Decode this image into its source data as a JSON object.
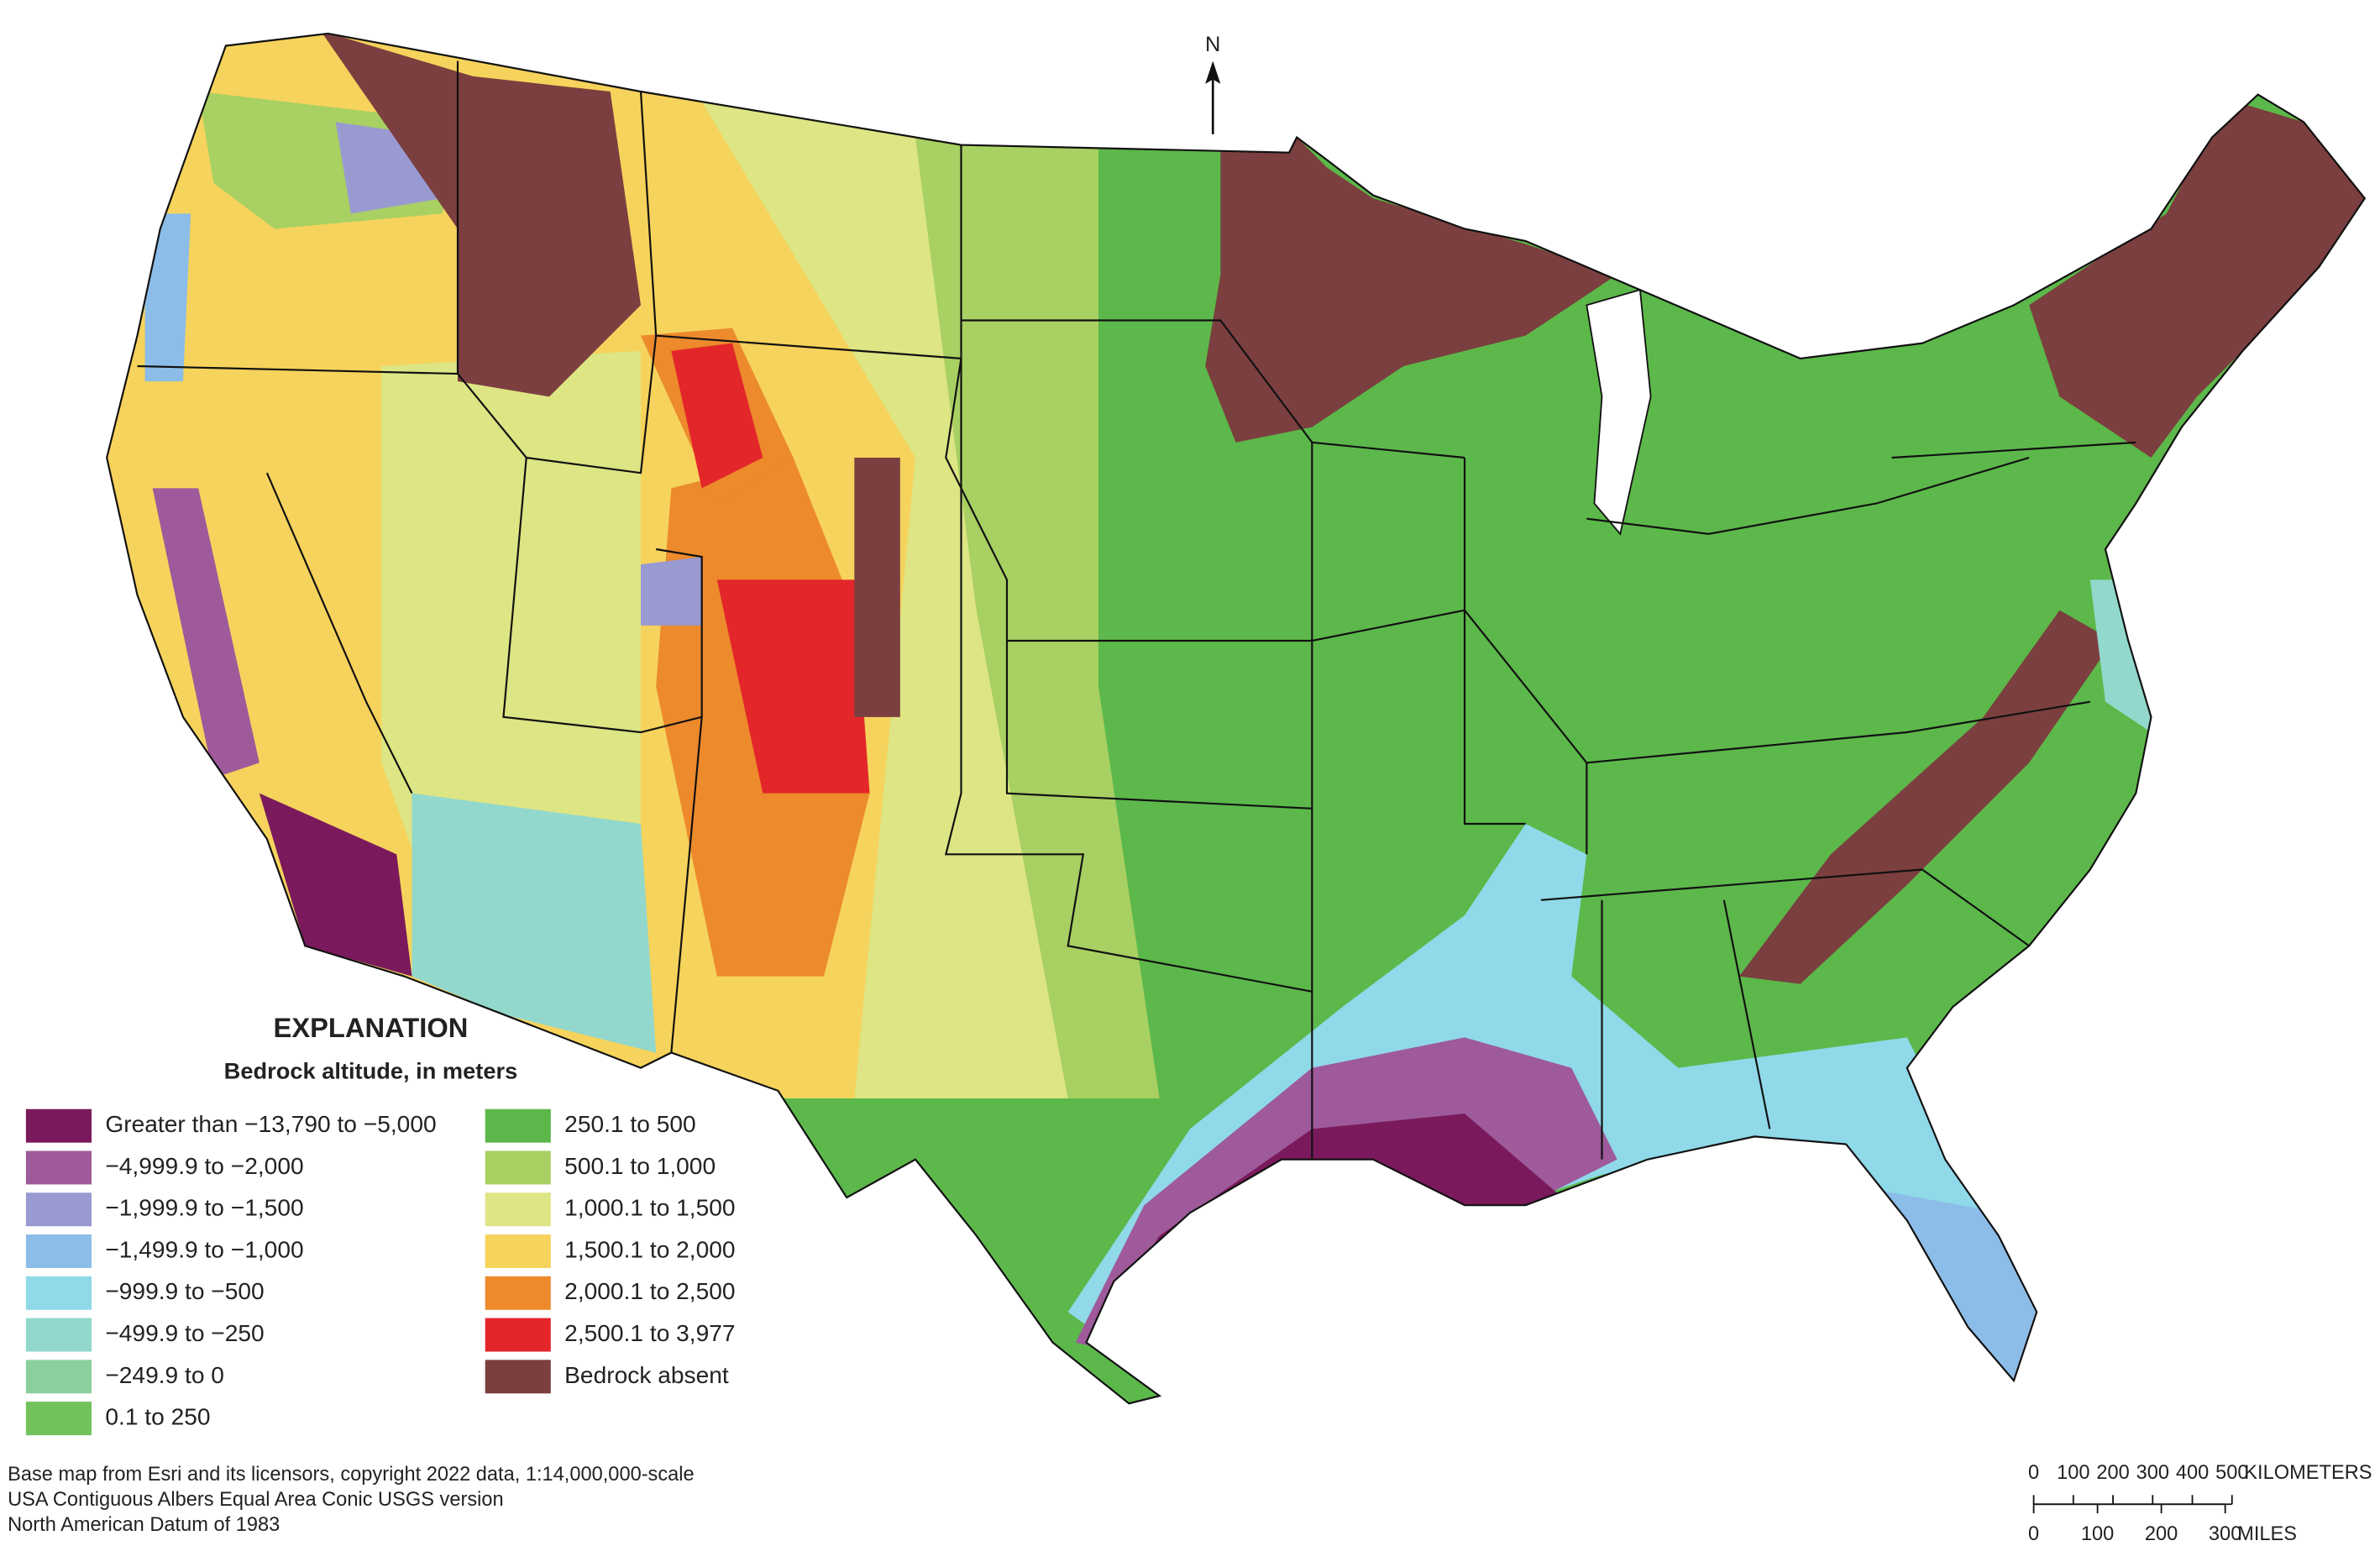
{
  "north_label": "N",
  "legend": {
    "title": "EXPLANATION",
    "subtitle": "Bedrock altitude, in meters",
    "items": [
      {
        "label": "Greater than −13,790 to −5,000",
        "color": "#7a1a5c"
      },
      {
        "label": "−4,999.9 to −2,000",
        "color": "#9e5a9a"
      },
      {
        "label": "−1,999.9 to −1,500",
        "color": "#9a9ad2"
      },
      {
        "label": "−1,499.9 to −1,000",
        "color": "#8cbde8"
      },
      {
        "label": "−999.9 to −500",
        "color": "#8fd9e9"
      },
      {
        "label": "−499.9 to −250",
        "color": "#92d8cc"
      },
      {
        "label": "−249.9 to 0",
        "color": "#8ccf9e"
      },
      {
        "label": "0.1 to 250",
        "color": "#72c25c"
      },
      {
        "label": "250.1 to 500",
        "color": "#5cb84a"
      },
      {
        "label": "500.1 to 1,000",
        "color": "#a8d062"
      },
      {
        "label": "1,000.1 to 1,500",
        "color": "#dde584"
      },
      {
        "label": "1,500.1 to 2,000",
        "color": "#f6d35c"
      },
      {
        "label": "2,000.1 to 2,500",
        "color": "#ec8a2c"
      },
      {
        "label": "2,500.1 to 3,977",
        "color": "#e3262a"
      },
      {
        "label": "Bedrock absent",
        "color": "#7b3f3f"
      }
    ]
  },
  "credits": [
    "Base map from Esri and its licensors, copyright 2022 data, 1:14,000,000-scale",
    "USA Contiguous Albers Equal Area Conic USGS version",
    "North American Datum of 1983"
  ],
  "scale_bar": {
    "kilometers": {
      "ticks": [
        0,
        100,
        200,
        300,
        400,
        500
      ],
      "unit": "KILOMETERS"
    },
    "miles": {
      "ticks": [
        0,
        100,
        200,
        300
      ],
      "unit": "MILES"
    }
  }
}
